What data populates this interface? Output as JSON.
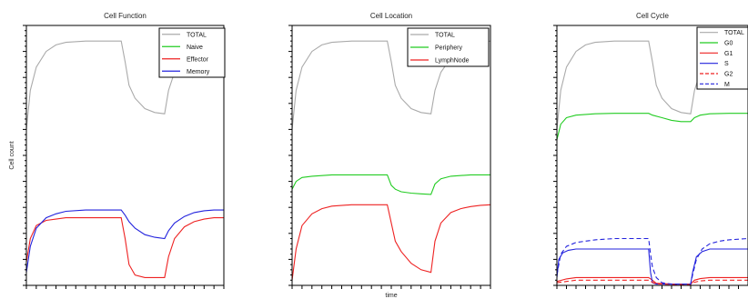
{
  "chart_data": [
    {
      "type": "line",
      "title": "Cell Function",
      "xlabel": "",
      "ylabel": "Cell count",
      "ylim": [
        0,
        100
      ],
      "xlim": [
        0,
        100
      ],
      "legend": "top-right",
      "series": [
        {
          "name": "TOTAL",
          "color": "#aaaaaa",
          "dash": "",
          "x": [
            0,
            2,
            5,
            10,
            15,
            20,
            30,
            40,
            48,
            50,
            52,
            55,
            60,
            65,
            70,
            72,
            75,
            80,
            85,
            90,
            95,
            100
          ],
          "y": [
            60,
            75,
            84,
            90,
            92.5,
            93.5,
            94,
            94,
            94,
            86,
            77,
            72,
            68,
            66.5,
            66,
            75,
            82,
            87.5,
            90.5,
            92.5,
            93.5,
            94
          ]
        },
        {
          "name": "Naive",
          "color": "#22cc22",
          "dash": "",
          "x": [
            0,
            100
          ],
          "y": [
            null,
            null
          ]
        },
        {
          "name": "Effector",
          "color": "#ee2222",
          "dash": "",
          "x": [
            0,
            2,
            5,
            10,
            15,
            20,
            30,
            40,
            48,
            50,
            52,
            55,
            60,
            65,
            70,
            72,
            75,
            80,
            85,
            90,
            95,
            100
          ],
          "y": [
            9,
            18,
            23,
            25,
            25.5,
            26,
            26,
            26,
            26,
            18,
            8,
            4,
            3,
            3,
            3,
            11,
            18,
            22.5,
            24.5,
            25.5,
            26,
            26
          ]
        },
        {
          "name": "Memory",
          "color": "#2222dd",
          "dash": "",
          "x": [
            0,
            2,
            5,
            10,
            15,
            20,
            30,
            40,
            48,
            50,
            52,
            55,
            60,
            65,
            70,
            72,
            75,
            80,
            85,
            90,
            95,
            100
          ],
          "y": [
            5,
            15,
            22,
            26,
            27.5,
            28.5,
            29,
            29,
            29,
            27,
            24.5,
            22,
            19.5,
            18.5,
            18,
            21,
            24,
            26.5,
            28,
            28.7,
            29,
            29
          ]
        }
      ]
    },
    {
      "type": "line",
      "title": "Cell Location",
      "xlabel": "time",
      "ylabel": "",
      "ylim": [
        0,
        100
      ],
      "xlim": [
        0,
        100
      ],
      "legend": "top-right",
      "series": [
        {
          "name": "TOTAL",
          "color": "#aaaaaa",
          "dash": "",
          "x": [
            0,
            2,
            5,
            10,
            15,
            20,
            30,
            40,
            48,
            50,
            52,
            55,
            60,
            65,
            70,
            72,
            75,
            80,
            85,
            90,
            95,
            100
          ],
          "y": [
            60,
            75,
            84,
            90,
            92.5,
            93.5,
            94,
            94,
            94,
            86,
            77,
            72,
            68,
            66.5,
            66,
            75,
            82,
            87.5,
            90.5,
            92.5,
            93.5,
            94
          ]
        },
        {
          "name": "Periphery",
          "color": "#22cc22",
          "dash": "",
          "x": [
            0,
            2,
            5,
            10,
            20,
            30,
            40,
            48,
            50,
            52,
            55,
            60,
            65,
            70,
            72,
            75,
            80,
            90,
            100
          ],
          "y": [
            37,
            40,
            41.5,
            42,
            42.5,
            42.5,
            42.5,
            42.5,
            38.5,
            37,
            36,
            35.5,
            35.2,
            35,
            39,
            41,
            42,
            42.5,
            42.5
          ]
        },
        {
          "name": "LymphNode",
          "color": "#ee2222",
          "dash": "",
          "x": [
            0,
            2,
            5,
            10,
            15,
            20,
            30,
            40,
            48,
            50,
            52,
            55,
            60,
            65,
            70,
            72,
            75,
            80,
            85,
            90,
            95,
            100
          ],
          "y": [
            2,
            14,
            23,
            27.5,
            29.5,
            30.5,
            31,
            31,
            31,
            24,
            17,
            13,
            8.5,
            6,
            5,
            17,
            24,
            28,
            29.5,
            30.3,
            30.8,
            31
          ]
        }
      ]
    },
    {
      "type": "line",
      "title": "Cell Cycle",
      "xlabel": "",
      "ylabel": "",
      "ylim": [
        0,
        100
      ],
      "xlim": [
        0,
        100
      ],
      "legend": "top-right",
      "series": [
        {
          "name": "TOTAL",
          "color": "#aaaaaa",
          "dash": "",
          "x": [
            0,
            2,
            5,
            10,
            15,
            20,
            30,
            40,
            48,
            50,
            52,
            55,
            60,
            65,
            70,
            72,
            75,
            80,
            85,
            90,
            95,
            100
          ],
          "y": [
            60,
            75,
            84,
            90,
            92.5,
            93.5,
            94,
            94,
            94,
            86,
            77,
            72,
            68,
            66.5,
            66,
            75,
            82,
            87.5,
            90.5,
            92.5,
            93.5,
            94
          ]
        },
        {
          "name": "G0",
          "color": "#22cc22",
          "dash": "",
          "x": [
            0,
            2,
            5,
            10,
            20,
            30,
            40,
            48,
            50,
            55,
            60,
            65,
            70,
            72,
            75,
            80,
            90,
            100
          ],
          "y": [
            56,
            62,
            64.5,
            65.5,
            66,
            66.2,
            66.2,
            66.2,
            65.5,
            64.5,
            63.5,
            63,
            63,
            64.5,
            65.5,
            66,
            66.2,
            66.2
          ]
        },
        {
          "name": "G1",
          "color": "#ee2222",
          "dash": "",
          "x": [
            0,
            5,
            10,
            20,
            40,
            48,
            50,
            52,
            60,
            70,
            72,
            75,
            80,
            100
          ],
          "y": [
            1.5,
            2.5,
            3,
            3,
            3,
            3,
            2,
            0.8,
            0.5,
            0.5,
            2,
            2.6,
            3,
            3
          ]
        },
        {
          "name": "S",
          "color": "#2222dd",
          "dash": "",
          "x": [
            0,
            1,
            3,
            6,
            10,
            20,
            40,
            48,
            49,
            50,
            52,
            60,
            70,
            71,
            73,
            76,
            80,
            90,
            100
          ],
          "y": [
            3,
            10,
            12.5,
            13.5,
            14,
            14,
            14,
            14,
            5,
            1,
            0.5,
            0.5,
            0.5,
            5,
            11,
            13,
            14,
            14,
            14
          ]
        },
        {
          "name": "G2",
          "color": "#ee2222",
          "dash": "5,3",
          "x": [
            0,
            5,
            10,
            20,
            48,
            50,
            52,
            60,
            70,
            72,
            75,
            80,
            100
          ],
          "y": [
            1,
            1.5,
            2,
            2,
            2,
            1.2,
            0.6,
            0.4,
            0.4,
            1.2,
            1.7,
            2,
            2
          ]
        },
        {
          "name": "M",
          "color": "#2222dd",
          "dash": "5,3",
          "x": [
            0,
            2,
            5,
            10,
            20,
            30,
            40,
            48,
            49,
            50,
            52,
            55,
            60,
            70,
            71,
            73,
            76,
            80,
            85,
            90,
            100
          ],
          "y": [
            4,
            12,
            15,
            16.5,
            17.5,
            18,
            18,
            18,
            12,
            7,
            3,
            1,
            0.5,
            0.5,
            4,
            10,
            14,
            16,
            17,
            17.5,
            18
          ]
        }
      ]
    }
  ]
}
